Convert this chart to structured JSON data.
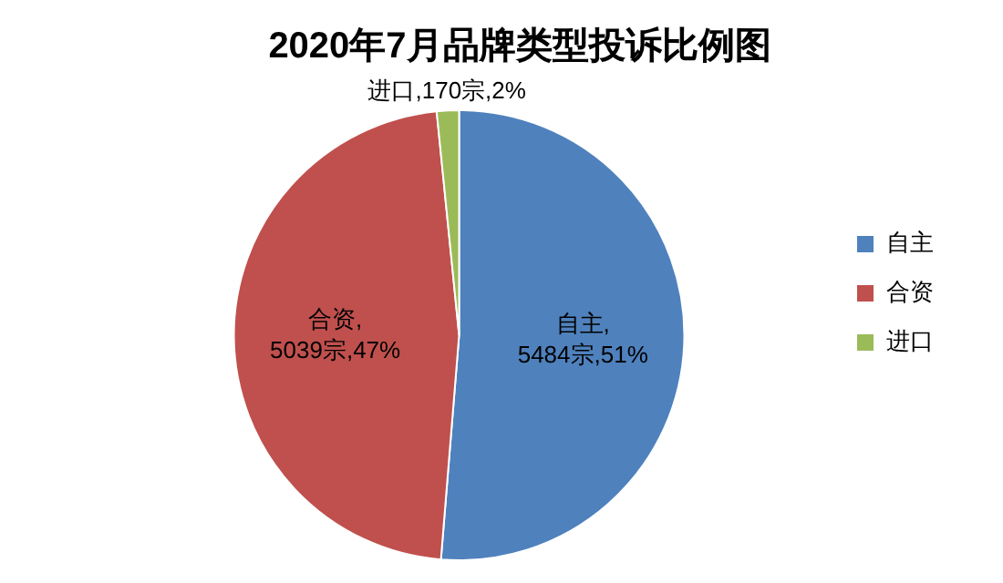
{
  "chart_data": {
    "type": "pie",
    "title": "2020年7月品牌类型投诉比例图",
    "categories": [
      "自主",
      "合资",
      "进口"
    ],
    "values": [
      5484,
      5039,
      170
    ],
    "colors": [
      "#4f81bd",
      "#c0504d",
      "#9bbb59"
    ],
    "value_labels": [
      "自主,5484宗,51%",
      "合资,5039宗,47%",
      "进口,170宗,2%"
    ],
    "legend": "right"
  }
}
